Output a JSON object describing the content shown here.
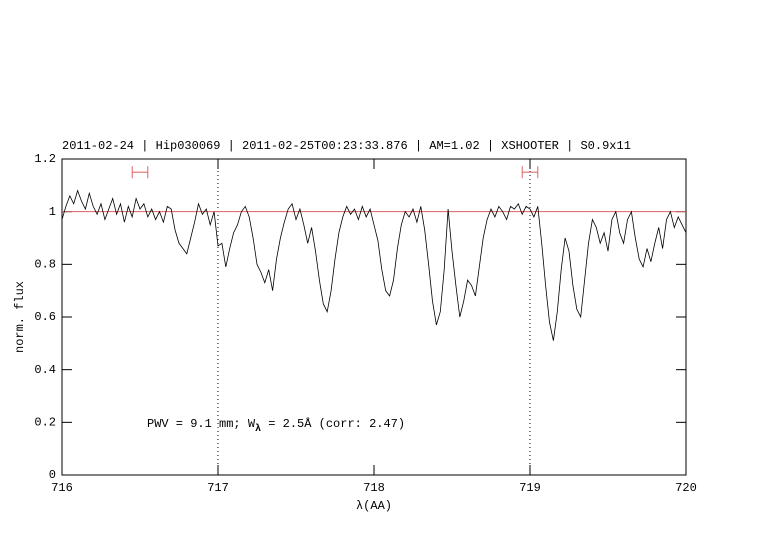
{
  "chart_data": {
    "type": "line",
    "title": "2011-02-24 | Hip030069 | 2011-02-25T00:23:33.876 | AM=1.02 | XSHOOTER | S0.9x11",
    "xlabel": "λ(AA)",
    "ylabel": "norm. flux",
    "annotation": [
      "PWV = 9.1 mm; W",
      "λ",
      " = 2.5Å (corr: 2.47)"
    ],
    "xlim": [
      716,
      720
    ],
    "ylim": [
      0,
      1.2
    ],
    "xticks": [
      716,
      717,
      718,
      719,
      720
    ],
    "yticks": [
      0,
      0.2,
      0.4,
      0.6,
      0.8,
      1,
      1.2
    ],
    "hline": 1,
    "hline_color": "#e06060",
    "vlines": [
      717,
      719
    ],
    "windows": [
      [
        716.45,
        716.55
      ],
      [
        718.95,
        719.05
      ]
    ],
    "window_y": 1.15,
    "window_color": "#e06060",
    "x": [
      716,
      716.025,
      716.05,
      716.075,
      716.1,
      716.125,
      716.15,
      716.175,
      716.2,
      716.225,
      716.25,
      716.275,
      716.3,
      716.325,
      716.35,
      716.375,
      716.4,
      716.425,
      716.45,
      716.475,
      716.5,
      716.525,
      716.55,
      716.575,
      716.6,
      716.625,
      716.65,
      716.675,
      716.7,
      716.725,
      716.75,
      716.775,
      716.8,
      716.825,
      716.85,
      716.875,
      716.9,
      716.925,
      716.95,
      716.975,
      717,
      717.025,
      717.05,
      717.075,
      717.1,
      717.125,
      717.15,
      717.175,
      717.2,
      717.225,
      717.25,
      717.275,
      717.3,
      717.325,
      717.35,
      717.375,
      717.4,
      717.425,
      717.45,
      717.475,
      717.5,
      717.525,
      717.55,
      717.575,
      717.6,
      717.625,
      717.65,
      717.675,
      717.7,
      717.725,
      717.75,
      717.775,
      717.8,
      717.825,
      717.85,
      717.875,
      717.9,
      717.925,
      717.95,
      717.975,
      718,
      718.025,
      718.05,
      718.075,
      718.1,
      718.125,
      718.15,
      718.175,
      718.2,
      718.225,
      718.25,
      718.275,
      718.3,
      718.325,
      718.35,
      718.375,
      718.4,
      718.425,
      718.45,
      718.475,
      718.5,
      718.525,
      718.55,
      718.575,
      718.6,
      718.625,
      718.65,
      718.675,
      718.7,
      718.725,
      718.75,
      718.775,
      718.8,
      718.825,
      718.85,
      718.875,
      718.9,
      718.925,
      718.95,
      718.975,
      719,
      719.025,
      719.05,
      719.075,
      719.1,
      719.125,
      719.15,
      719.175,
      719.2,
      719.225,
      719.25,
      719.275,
      719.3,
      719.325,
      719.35,
      719.375,
      719.4,
      719.425,
      719.45,
      719.475,
      719.5,
      719.525,
      719.55,
      719.575,
      719.6,
      719.625,
      719.65,
      719.675,
      719.7,
      719.725,
      719.75,
      719.775,
      719.8,
      719.825,
      719.85,
      719.875,
      719.9,
      719.925,
      719.95,
      719.975,
      720
    ],
    "series": [
      {
        "color": "#000000",
        "values": [
          0.97,
          1.02,
          1.06,
          1.03,
          1.08,
          1.04,
          1.01,
          1.07,
          1.02,
          0.99,
          1.03,
          0.97,
          1.01,
          1.05,
          0.99,
          1.03,
          0.96,
          1.02,
          0.98,
          1.05,
          1.01,
          1.03,
          0.98,
          1.01,
          0.97,
          1.0,
          0.96,
          1.02,
          1.01,
          0.93,
          0.88,
          0.86,
          0.84,
          0.9,
          0.96,
          1.03,
          0.99,
          1.01,
          0.95,
          1.0,
          0.87,
          0.88,
          0.79,
          0.86,
          0.92,
          0.95,
          1.0,
          1.02,
          0.98,
          0.9,
          0.8,
          0.77,
          0.73,
          0.78,
          0.7,
          0.82,
          0.9,
          0.96,
          1.01,
          1.03,
          0.97,
          1.01,
          0.95,
          0.88,
          0.94,
          0.85,
          0.74,
          0.65,
          0.62,
          0.7,
          0.82,
          0.92,
          0.98,
          1.02,
          0.99,
          1.01,
          0.97,
          1.02,
          0.98,
          1.01,
          0.95,
          0.89,
          0.78,
          0.7,
          0.68,
          0.74,
          0.86,
          0.95,
          1.0,
          0.98,
          1.01,
          0.96,
          1.02,
          0.93,
          0.8,
          0.66,
          0.57,
          0.62,
          0.78,
          1.01,
          0.85,
          0.72,
          0.6,
          0.66,
          0.74,
          0.72,
          0.68,
          0.79,
          0.9,
          0.97,
          1.01,
          0.98,
          1.02,
          1.0,
          0.97,
          1.02,
          1.01,
          1.03,
          0.99,
          1.02,
          1.01,
          0.98,
          1.02,
          0.88,
          0.72,
          0.58,
          0.51,
          0.62,
          0.78,
          0.9,
          0.85,
          0.72,
          0.63,
          0.6,
          0.74,
          0.88,
          0.97,
          0.94,
          0.88,
          0.92,
          0.85,
          0.97,
          1.0,
          0.92,
          0.88,
          0.97,
          1.0,
          0.9,
          0.82,
          0.79,
          0.86,
          0.81,
          0.88,
          0.94,
          0.86,
          0.97,
          1.0,
          0.94,
          0.98,
          0.95,
          0.92
        ]
      }
    ],
    "title_color": "#0000e0",
    "annotation_color": "#0000e0"
  }
}
